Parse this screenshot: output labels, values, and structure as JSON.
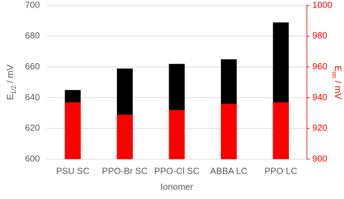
{
  "chart_data": {
    "type": "bar",
    "xlabel": "Ionomer",
    "ylabel": [
      "E",
      "1/2",
      " / mV"
    ],
    "y2label": [
      "E",
      "on",
      " / mV"
    ],
    "categories": [
      "PSU SC",
      "PPO-Br SC",
      "PPO-Cl SC",
      "ABBA LC",
      "PPO LC"
    ],
    "series": [
      {
        "name": "E1/2",
        "color": "#ff0000",
        "values": [
          637,
          629,
          632,
          636,
          637
        ]
      },
      {
        "name": "Eon",
        "color": "#000000",
        "axis": "y2",
        "values": [
          945,
          959,
          962,
          965,
          989
        ]
      }
    ],
    "ylim": [
      600,
      700
    ],
    "yticks": [
      600,
      620,
      640,
      660,
      680,
      700
    ],
    "y2lim": [
      900,
      1000
    ],
    "y2ticks": [
      900,
      920,
      940,
      960,
      980,
      1000
    ],
    "y2color": "#ff0000",
    "grid": true
  }
}
